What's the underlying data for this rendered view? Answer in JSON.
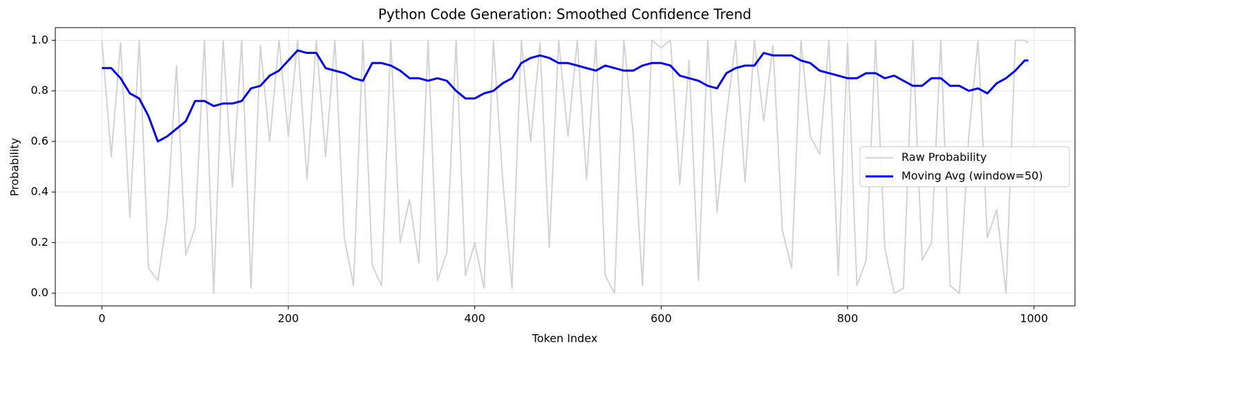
{
  "chart_data": {
    "type": "line",
    "title": "Python Code Generation: Smoothed Confidence Trend",
    "xlabel": "Token Index",
    "ylabel": "Probability",
    "x": [
      0,
      10,
      20,
      30,
      40,
      50,
      60,
      70,
      80,
      90,
      100,
      110,
      120,
      130,
      140,
      150,
      160,
      170,
      180,
      190,
      200,
      210,
      220,
      230,
      240,
      250,
      260,
      270,
      280,
      290,
      300,
      310,
      320,
      330,
      340,
      350,
      360,
      370,
      380,
      390,
      400,
      410,
      420,
      430,
      440,
      450,
      460,
      470,
      480,
      490,
      500,
      510,
      520,
      530,
      540,
      550,
      560,
      570,
      580,
      590,
      600,
      610,
      620,
      630,
      640,
      650,
      660,
      670,
      680,
      690,
      700,
      710,
      720,
      730,
      740,
      750,
      760,
      770,
      780,
      790,
      800,
      810,
      820,
      830,
      840,
      850,
      860,
      870,
      880,
      890,
      900,
      910,
      920,
      930,
      940,
      950,
      960,
      970,
      980,
      990,
      994
    ],
    "series": [
      {
        "name": "Raw Probability",
        "color": "#d3d3d3",
        "values": [
          1.0,
          0.54,
          0.99,
          0.3,
          1.0,
          0.1,
          0.05,
          0.3,
          0.9,
          0.15,
          0.26,
          1.0,
          0.0,
          1.0,
          0.42,
          1.0,
          0.02,
          0.98,
          0.6,
          1.0,
          0.62,
          1.0,
          0.45,
          1.0,
          0.54,
          1.0,
          0.22,
          0.03,
          1.0,
          0.11,
          0.03,
          1.0,
          0.2,
          0.37,
          0.12,
          1.0,
          0.05,
          0.16,
          1.0,
          0.07,
          0.2,
          0.02,
          1.0,
          0.45,
          0.02,
          1.0,
          0.6,
          0.99,
          0.18,
          1.0,
          0.62,
          1.0,
          0.45,
          1.0,
          0.07,
          0.0,
          1.0,
          0.63,
          0.03,
          1.0,
          0.97,
          1.0,
          0.43,
          0.92,
          0.05,
          1.0,
          0.32,
          0.7,
          1.0,
          0.44,
          1.0,
          0.68,
          0.98,
          0.25,
          0.1,
          1.0,
          0.62,
          0.55,
          1.0,
          0.07,
          0.99,
          0.03,
          0.13,
          1.0,
          0.18,
          0.0,
          0.02,
          1.0,
          0.13,
          0.2,
          1.0,
          0.03,
          0.0,
          0.62,
          1.0,
          0.22,
          0.33,
          0.0,
          1.0,
          1.0,
          0.99
        ]
      },
      {
        "name": "Moving Avg (window=50)",
        "color": "#0000ff",
        "values": [
          0.89,
          0.89,
          0.85,
          0.79,
          0.77,
          0.7,
          0.6,
          0.62,
          0.65,
          0.68,
          0.76,
          0.76,
          0.74,
          0.75,
          0.75,
          0.76,
          0.81,
          0.82,
          0.86,
          0.88,
          0.92,
          0.96,
          0.95,
          0.95,
          0.89,
          0.88,
          0.87,
          0.85,
          0.84,
          0.91,
          0.91,
          0.9,
          0.88,
          0.85,
          0.85,
          0.84,
          0.85,
          0.84,
          0.8,
          0.77,
          0.77,
          0.79,
          0.8,
          0.83,
          0.85,
          0.91,
          0.93,
          0.94,
          0.93,
          0.91,
          0.91,
          0.9,
          0.89,
          0.88,
          0.9,
          0.89,
          0.88,
          0.88,
          0.9,
          0.91,
          0.91,
          0.9,
          0.86,
          0.85,
          0.84,
          0.82,
          0.81,
          0.87,
          0.89,
          0.9,
          0.9,
          0.95,
          0.94,
          0.94,
          0.94,
          0.92,
          0.91,
          0.88,
          0.87,
          0.86,
          0.85,
          0.85,
          0.87,
          0.87,
          0.85,
          0.86,
          0.84,
          0.82,
          0.82,
          0.85,
          0.85,
          0.82,
          0.82,
          0.8,
          0.81,
          0.79,
          0.83,
          0.85,
          0.88,
          0.92,
          0.92
        ]
      }
    ],
    "xlim": [
      -50,
      1044
    ],
    "ylim": [
      -0.05,
      1.05
    ],
    "xticks": [
      0,
      200,
      400,
      600,
      800,
      1000
    ],
    "yticks": [
      {
        "value": 0,
        "label": "0.0"
      },
      {
        "value": 0.2,
        "label": "0.2"
      },
      {
        "value": 0.4,
        "label": "0.4"
      },
      {
        "value": 0.6,
        "label": "0.6"
      },
      {
        "value": 0.8,
        "label": "0.8"
      },
      {
        "value": 1,
        "label": "1.0"
      }
    ],
    "grid": true,
    "legend": "center right"
  }
}
